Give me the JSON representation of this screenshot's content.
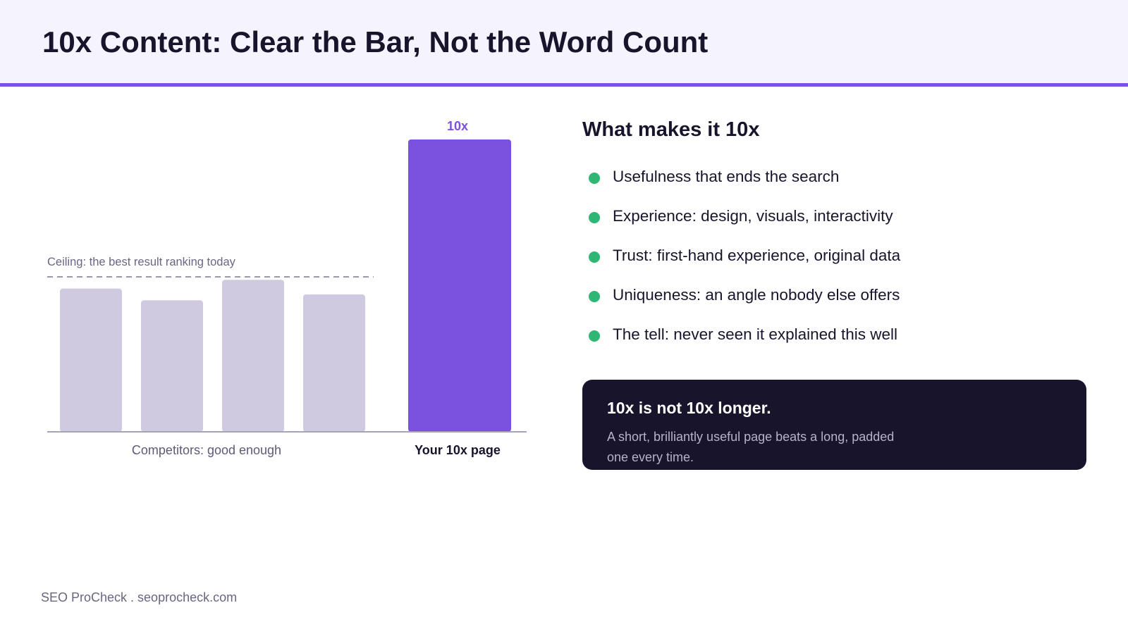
{
  "header": {
    "title": "10x Content: Clear the Bar, Not the Word Count"
  },
  "chart_data": {
    "type": "bar",
    "categories": [
      "Competitor 1",
      "Competitor 2",
      "Competitor 3",
      "Competitor 4",
      "Your 10x page"
    ],
    "values": [
      4.9,
      4.5,
      5.2,
      4.7,
      10
    ],
    "ylim": [
      0,
      10.5
    ],
    "ceiling": {
      "value": 5.3,
      "label": "Ceiling: the best result ranking today"
    },
    "highlight_label": "10x",
    "group_labels": {
      "competitors": "Competitors: good enough",
      "yours": "Your 10x page"
    },
    "colors": {
      "competitor": "#cfcadf",
      "highlight": "#7b52e0",
      "ceiling": "#9a96ac",
      "axis": "#a6a2b7"
    }
  },
  "panel": {
    "title": "What makes it 10x",
    "bullets": [
      "Usefulness that ends the search",
      "Experience: design, visuals, interactivity",
      "Trust: first-hand experience, original data",
      "Uniqueness: an angle nobody else offers",
      "The tell: never seen it explained this well"
    ],
    "bullet_color": "#2fb574"
  },
  "callout": {
    "title": "10x is not 10x longer.",
    "body": "A short, brilliantly useful page beats a long, padded one every time."
  },
  "footer": {
    "text": "SEO ProCheck . seoprocheck.com"
  },
  "colors": {
    "accent": "#7b52e0",
    "header_bg": "#f5f3fd",
    "dark": "#17142b"
  }
}
